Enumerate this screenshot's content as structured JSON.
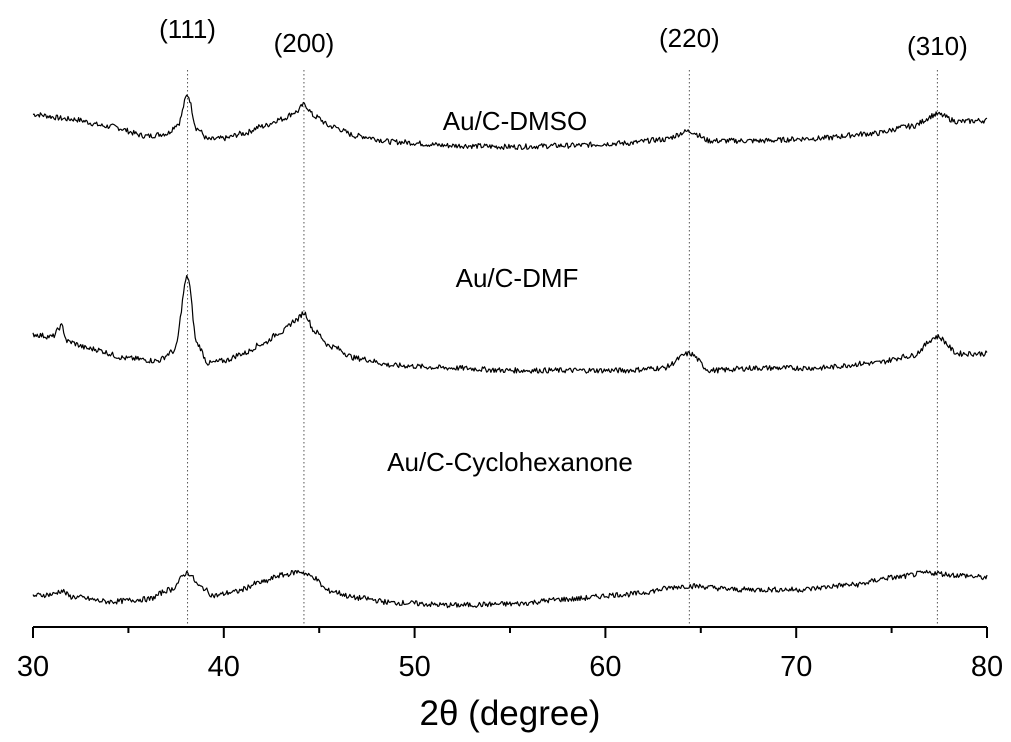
{
  "chart_data": {
    "type": "line",
    "title": "",
    "xlabel": "2θ (degree)",
    "ylabel": "",
    "xlim": [
      30,
      80
    ],
    "x_ticks": [
      "30",
      "40",
      "50",
      "60",
      "70",
      "80"
    ],
    "y_axis_shown": false,
    "grid": false,
    "legend": "none",
    "line_color": "#000000",
    "reference_lines": [
      {
        "label": "(111)",
        "x": 38.1
      },
      {
        "label": "(200)",
        "x": 44.2
      },
      {
        "label": "(220)",
        "x": 64.4
      },
      {
        "label": "(310)",
        "x": 77.4
      }
    ],
    "series": [
      {
        "name": "Au/C-DMSO",
        "x": [
          30,
          32,
          34,
          36,
          37,
          37.6,
          38.1,
          38.6,
          39.2,
          40,
          41,
          42,
          43,
          43.8,
          44.2,
          44.8,
          45.6,
          47,
          49,
          52,
          55,
          58,
          61,
          63,
          64.4,
          65.5,
          68,
          71,
          74,
          76,
          77.4,
          78.5,
          80
        ],
        "y": [
          0.78,
          0.74,
          0.68,
          0.6,
          0.62,
          0.7,
          0.94,
          0.66,
          0.57,
          0.58,
          0.62,
          0.68,
          0.74,
          0.8,
          0.86,
          0.76,
          0.68,
          0.6,
          0.55,
          0.52,
          0.51,
          0.52,
          0.54,
          0.57,
          0.64,
          0.56,
          0.56,
          0.58,
          0.62,
          0.68,
          0.78,
          0.72,
          0.73
        ]
      },
      {
        "name": "Au/C-DMF",
        "x": [
          30,
          31,
          31.5,
          31.8,
          33,
          35,
          36.5,
          37.4,
          38.1,
          38.6,
          39.2,
          40,
          41,
          42,
          43,
          43.8,
          44.2,
          44.8,
          45.6,
          47,
          49,
          52,
          55,
          58,
          61,
          63,
          64.4,
          65.5,
          68,
          71,
          74,
          76,
          77.4,
          78.5,
          80
        ],
        "y": [
          0.48,
          0.46,
          0.55,
          0.42,
          0.36,
          0.28,
          0.26,
          0.34,
          0.96,
          0.4,
          0.24,
          0.26,
          0.32,
          0.4,
          0.5,
          0.6,
          0.66,
          0.5,
          0.38,
          0.28,
          0.22,
          0.2,
          0.18,
          0.18,
          0.18,
          0.2,
          0.32,
          0.18,
          0.2,
          0.2,
          0.24,
          0.3,
          0.46,
          0.32,
          0.32
        ]
      },
      {
        "name": "Au/C-Cyclohexanone",
        "x": [
          30,
          31,
          31.5,
          32,
          34,
          36,
          37.2,
          38.1,
          38.8,
          39.5,
          40.5,
          42,
          43,
          44,
          44.6,
          45.5,
          47,
          49,
          52,
          55,
          58,
          61,
          64.4,
          67,
          70,
          73,
          75,
          77,
          78.5,
          80
        ],
        "y": [
          -0.13,
          -0.12,
          -0.09,
          -0.14,
          -0.18,
          -0.16,
          -0.08,
          0.06,
          -0.06,
          -0.13,
          -0.1,
          -0.02,
          0.04,
          0.07,
          0.03,
          -0.09,
          -0.15,
          -0.19,
          -0.21,
          -0.2,
          -0.16,
          -0.12,
          -0.05,
          -0.08,
          -0.08,
          -0.04,
          0.02,
          0.06,
          0.04,
          0.02
        ]
      }
    ]
  }
}
